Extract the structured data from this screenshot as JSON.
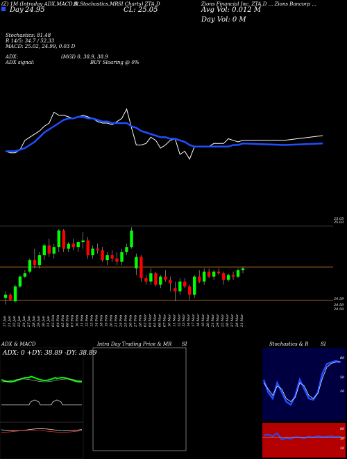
{
  "header": {
    "line1_left": "(Z) 1M (Intraday ADX,MACD,B",
    "line1_mid": "Sl,Stochastics,MR",
    "line1_mid2": "SI Charts) ZTA.D",
    "line1_right": "Zions Financial Inc. ZTA.D ... Zions Bancorp ...",
    "day_label": "Day",
    "change_label": "24.95",
    "close_label": "CL: 25.05",
    "avg_vol": "Avg Vol: 0.012  M",
    "day_vol": "Day Vol: 0   M",
    "stoch": "Stochastics: 81.48",
    "stoch_r": "R              14/5: 34.7 / 52.33",
    "macd": "MACD: 25.02,  24.99,  0.03  D",
    "adx": "ADX:",
    "adx_mid": "(MGI) 0,  38.9,  38.9",
    "adx_signal": "ADX  signal:",
    "adx_signal_mid": "BUY Sloaring @ 0%"
  },
  "price_axis": {
    "labels": [
      "25.05",
      "25.03",
      "24.59",
      "24.59",
      "24.59"
    ]
  },
  "panels": {
    "adx_title": "ADX  & MACD",
    "adx_readout": "ADX: 0   +DY: 38.89  -DY: 38.89",
    "intra_title": "Intra  Day Trading Price  & MR",
    "intra_si": "SI",
    "stoch_title": "Stochastics & R",
    "stoch_si": "SI",
    "stoch_labels": [
      "80",
      "50",
      "20"
    ],
    "rsi_labels": [
      "80",
      "50",
      "20"
    ]
  },
  "colors": {
    "up": "#00ff00",
    "down": "#ff0000",
    "ma": "#1f4fff",
    "price": "#ffffff",
    "grid": "#d4802a",
    "rsi_bg": "#b40000",
    "stoch_bg": "#000040"
  },
  "chart_data": {
    "type": "candlestick",
    "x": [
      "17 Jan",
      "21 Jan",
      "22 Jan",
      "23 Jan",
      "24 Jan",
      "27 Jan",
      "28 Jan",
      "29 Jan",
      "30 Jan",
      "31 Jan",
      "03 Feb",
      "04 Feb",
      "05 Feb",
      "06 Feb",
      "07 Feb",
      "10 Feb",
      "11 Feb",
      "12 Feb",
      "13 Feb",
      "14 Feb",
      "18 Feb",
      "19 Feb",
      "20 Feb",
      "21 Feb",
      "24 Feb",
      "25 Feb",
      "26 Feb",
      "27 Feb",
      "28 Feb",
      "03 Mar",
      "04 Mar",
      "05 Mar",
      "06 Mar",
      "07 Mar",
      "10 Mar",
      "11 Mar",
      "12 Mar",
      "13 Mar",
      "14 Mar",
      "17 Mar",
      "18 Mar",
      "19 Mar",
      "20 Mar",
      "21 Mar",
      "24 Mar",
      "25 Mar",
      "26 Mar",
      "27 Mar",
      "28 Mar",
      "31 Mar"
    ],
    "ohlc": [
      [
        24.62,
        24.66,
        24.58,
        24.64
      ],
      [
        24.64,
        24.65,
        24.6,
        24.61
      ],
      [
        24.6,
        24.7,
        24.59,
        24.69
      ],
      [
        24.69,
        24.76,
        24.68,
        24.75
      ],
      [
        24.75,
        24.79,
        24.74,
        24.77
      ],
      [
        24.78,
        24.86,
        24.77,
        24.85
      ],
      [
        24.85,
        24.92,
        24.8,
        24.82
      ],
      [
        24.82,
        24.9,
        24.8,
        24.88
      ],
      [
        24.88,
        24.95,
        24.85,
        24.94
      ],
      [
        24.94,
        24.98,
        24.87,
        24.89
      ],
      [
        24.89,
        24.95,
        24.86,
        24.93
      ],
      [
        24.93,
        25.04,
        24.9,
        25.03
      ],
      [
        25.03,
        25.04,
        24.9,
        24.92
      ],
      [
        24.92,
        24.96,
        24.9,
        24.95
      ],
      [
        24.95,
        24.98,
        24.91,
        24.93
      ],
      [
        24.93,
        24.97,
        24.9,
        24.96
      ],
      [
        24.96,
        25.02,
        24.92,
        24.97
      ],
      [
        24.97,
        24.99,
        24.86,
        24.88
      ],
      [
        24.88,
        24.94,
        24.86,
        24.92
      ],
      [
        24.92,
        24.95,
        24.89,
        24.91
      ],
      [
        24.91,
        24.93,
        24.84,
        24.85
      ],
      [
        24.85,
        24.9,
        24.82,
        24.88
      ],
      [
        24.88,
        24.91,
        24.84,
        24.86
      ],
      [
        24.86,
        24.9,
        24.82,
        24.84
      ],
      [
        24.84,
        24.92,
        24.82,
        24.9
      ],
      [
        24.9,
        24.95,
        24.88,
        24.93
      ],
      [
        24.93,
        25.05,
        24.92,
        25.03
      ],
      [
        24.8,
        24.89,
        24.76,
        24.87
      ],
      [
        24.87,
        24.88,
        24.72,
        24.74
      ],
      [
        24.74,
        24.76,
        24.7,
        24.72
      ],
      [
        24.72,
        24.8,
        24.7,
        24.77
      ],
      [
        24.77,
        24.78,
        24.69,
        24.7
      ],
      [
        24.7,
        24.76,
        24.68,
        24.75
      ],
      [
        24.75,
        24.79,
        24.72,
        24.73
      ],
      [
        24.73,
        24.75,
        24.66,
        24.71
      ],
      [
        24.68,
        24.72,
        24.6,
        24.66
      ],
      [
        24.66,
        24.74,
        24.64,
        24.72
      ],
      [
        24.72,
        24.74,
        24.68,
        24.69
      ],
      [
        24.69,
        24.7,
        24.61,
        24.64
      ],
      [
        24.64,
        24.76,
        24.62,
        24.75
      ],
      [
        24.75,
        24.79,
        24.71,
        24.72
      ],
      [
        24.72,
        24.8,
        24.7,
        24.78
      ],
      [
        24.78,
        24.8,
        24.74,
        24.75
      ],
      [
        24.75,
        24.79,
        24.73,
        24.78
      ],
      [
        24.78,
        24.8,
        24.76,
        24.77
      ],
      [
        24.77,
        24.78,
        24.7,
        24.73
      ],
      [
        24.73,
        24.77,
        24.72,
        24.76
      ],
      [
        24.76,
        24.78,
        24.73,
        24.75
      ],
      [
        24.75,
        24.8,
        24.74,
        24.79
      ],
      [
        24.79,
        24.81,
        24.77,
        24.8
      ]
    ],
    "price_line": [
      24.95,
      24.94,
      24.94,
      24.96,
      25.02,
      25.04,
      25.06,
      25.08,
      25.11,
      25.13,
      25.2,
      25.18,
      25.18,
      25.17,
      25.16,
      25.17,
      25.18,
      25.17,
      25.16,
      25.14,
      25.13,
      25.13,
      25.12,
      25.14,
      25.16,
      25.22,
      25.1,
      24.99,
      24.99,
      25.0,
      25.04,
      25.02,
      24.97,
      24.99,
      25.02,
      25.03,
      24.93,
      24.95,
      24.9,
      24.98,
      24.98,
      24.98,
      24.98,
      25.0,
      25.0,
      25.0,
      25.03,
      25.02,
      25.01,
      25.02
    ],
    "ma_line": [
      24.95,
      24.95,
      24.95,
      24.96,
      24.97,
      24.99,
      25.01,
      25.04,
      25.07,
      25.09,
      25.11,
      25.13,
      25.15,
      25.16,
      25.16,
      25.17,
      25.17,
      25.16,
      25.16,
      25.15,
      25.14,
      25.14,
      25.13,
      25.13,
      25.13,
      25.13,
      25.11,
      25.1,
      25.08,
      25.07,
      25.06,
      25.05,
      25.04,
      25.04,
      25.03,
      25.03,
      25.02,
      25.01,
      24.99,
      24.98,
      24.98,
      24.98,
      24.98,
      24.98,
      24.98,
      24.98,
      24.98,
      24.99,
      24.99,
      25.0
    ],
    "title": "Zions Financial Inc. ZTA.D",
    "ylim": [
      24.55,
      25.3
    ]
  }
}
